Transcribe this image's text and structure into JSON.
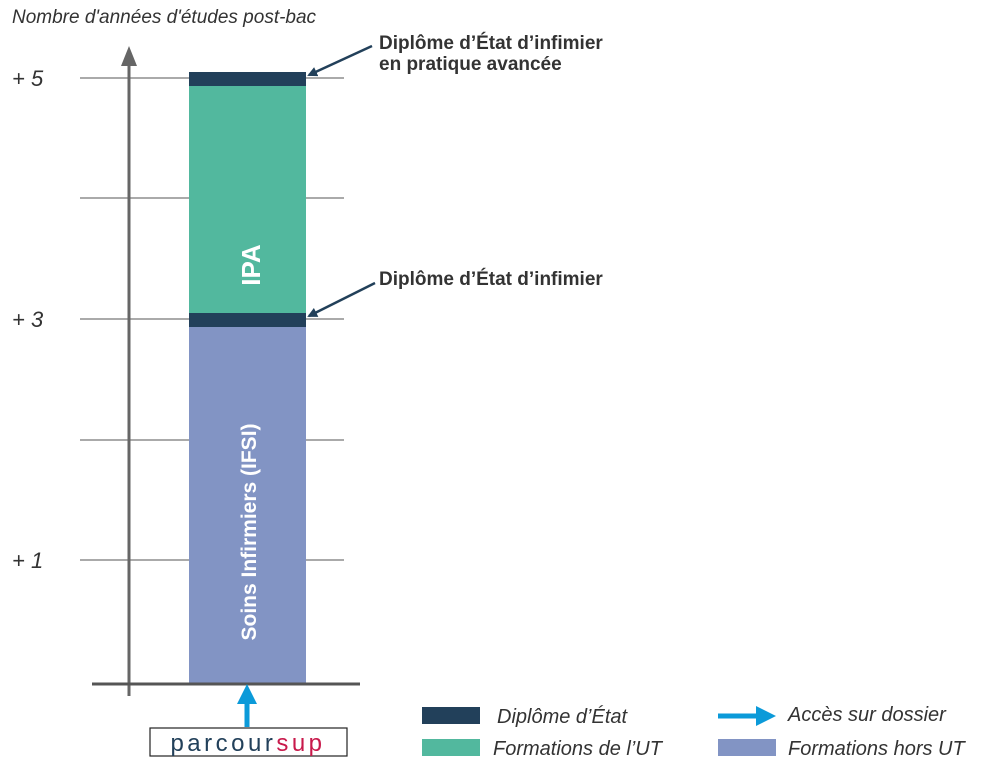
{
  "axis": {
    "title": "Nombre d'années d'études post-bac",
    "ticks": [
      "+ 5",
      "+ 3",
      "+ 1"
    ]
  },
  "bars": {
    "ipa_label": "IPA",
    "ifsi_label": "Soins Infirmiers (IFSI)"
  },
  "annotations": {
    "ipa_diploma_line1": "Diplôme d’État d’infimier",
    "ipa_diploma_line2": "en pratique avancée",
    "de_diploma": "Diplôme d’État d’infimier"
  },
  "logo": {
    "part1": "parcour",
    "part2": "sup"
  },
  "legend": {
    "diplome": "Diplôme d’État",
    "ut": "Formations de l’UT",
    "acces": "Accès sur dossier",
    "hors_ut": "Formations hors UT"
  },
  "colors": {
    "diplome": "#22405a",
    "ut": "#52b89e",
    "hors_ut": "#8294c4",
    "acces": "#0b9ad9",
    "logo_dark": "#22405a",
    "logo_accent": "#c8194b"
  }
}
